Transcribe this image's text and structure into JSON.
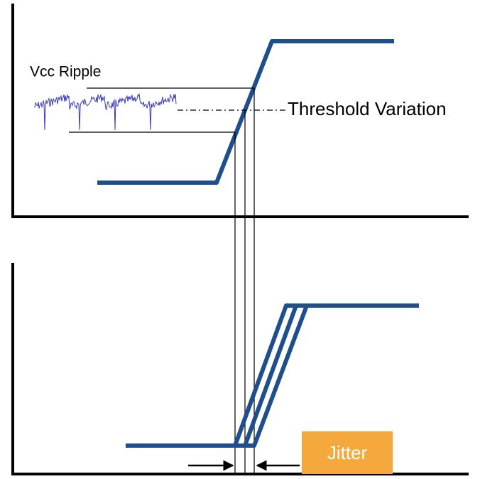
{
  "labels": {
    "vcc_ripple": "Vcc Ripple",
    "threshold_variation": "Threshold Variation",
    "jitter": "Jitter"
  }
}
